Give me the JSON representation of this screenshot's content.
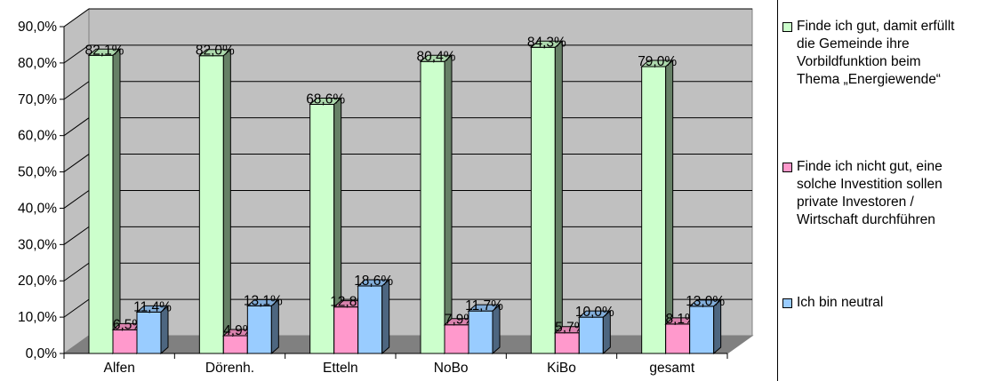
{
  "chart_data": {
    "type": "bar",
    "categories": [
      "Alfen",
      "Dörenh.",
      "Etteln",
      "NoBo",
      "KiBo",
      "gesamt"
    ],
    "series": [
      {
        "name": "Finde ich gut, damit erfüllt die Gemeinde ihre Vorbildfunktion beim Thema „Energiewende“",
        "color": "#ccffcc",
        "values": [
          82.1,
          82.0,
          68.6,
          80.4,
          84.3,
          79.0
        ],
        "labels": [
          "82,1%",
          "82,0%",
          "68,6%",
          "80,4%",
          "84,3%",
          "79,0%"
        ]
      },
      {
        "name": "Finde ich nicht gut, eine solche Investition sollen private Investoren / Wirtschaft durchführen",
        "color": "#ff99cc",
        "values": [
          6.5,
          4.9,
          12.8,
          7.9,
          5.7,
          8.1
        ],
        "labels": [
          "6,5%",
          "4,9%",
          "12,8%",
          "7,9%",
          "5,7%",
          "8,1%"
        ]
      },
      {
        "name": "Ich bin neutral",
        "color": "#99ccff",
        "values": [
          11.4,
          13.1,
          18.6,
          11.7,
          10.0,
          13.0
        ],
        "labels": [
          "11,4%",
          "13,1%",
          "18,6%",
          "11,7%",
          "10,0%",
          "13,0%"
        ]
      }
    ],
    "ylim": [
      0,
      90
    ],
    "yticks": [
      "0,0%",
      "10,0%",
      "20,0%",
      "30,0%",
      "40,0%",
      "50,0%",
      "60,0%",
      "70,0%",
      "80,0%",
      "90,0%"
    ],
    "grid": true,
    "legend_position": "right",
    "style": "3d-column",
    "wall_color": "#c0c0c0",
    "floor_color": "#808080"
  },
  "legend": {
    "items": [
      "Finde ich gut, damit erfüllt\ndie Gemeinde ihre\nVorbildfunktion beim\nThema „Energiewende“",
      "Finde ich nicht gut, eine\nsolche Investition sollen\nprivate Investoren /\nWirtschaft durchführen",
      "Ich bin neutral"
    ]
  }
}
